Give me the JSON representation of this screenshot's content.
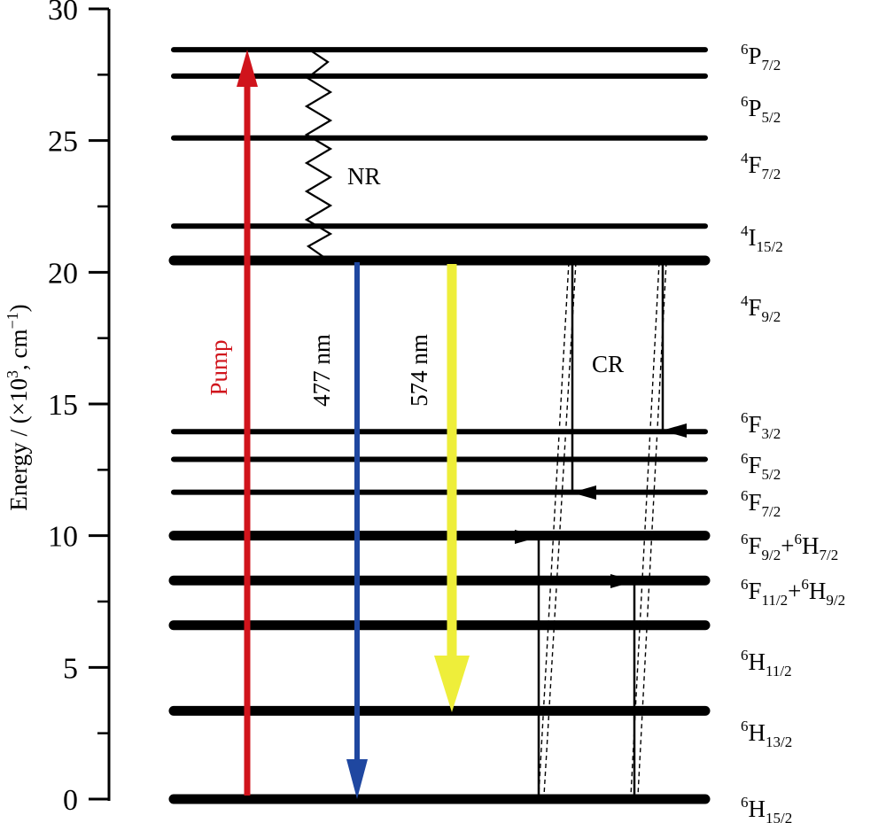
{
  "axis": {
    "title_main": "Energy / (×10",
    "title_exp": "3",
    "title_mid": ", cm",
    "title_exp2": "−1",
    "title_end": ")",
    "range": [
      0,
      30
    ],
    "ticks": [
      "0",
      "5",
      "10",
      "15",
      "20",
      "25",
      "30"
    ]
  },
  "levels": [
    {
      "id": "6H15/2",
      "energy": 0.0,
      "major": true,
      "base": "H",
      "sup": "6",
      "sub": "15/2"
    },
    {
      "id": "6H13/2",
      "energy": 3.35,
      "major": true,
      "base": "H",
      "sup": "6",
      "sub": "13/2"
    },
    {
      "id": "6H11/2",
      "energy": 6.6,
      "major": true,
      "base": "H",
      "sup": "6",
      "sub": "11/2"
    },
    {
      "id": "6F11/2+6H9/2",
      "energy": 8.3,
      "major": true,
      "base": "F",
      "sup": "6",
      "sub": "11/2",
      "plus": "+",
      "base2": "H",
      "sup2": "6",
      "sub2": "9/2"
    },
    {
      "id": "6F9/2+6H7/2",
      "energy": 10.0,
      "major": true,
      "base": "F",
      "sup": "6",
      "sub": "9/2",
      "plus": "+",
      "base2": "H",
      "sup2": "6",
      "sub2": "7/2"
    },
    {
      "id": "6F7/2",
      "energy": 11.65,
      "major": false,
      "base": "F",
      "sup": "6",
      "sub": "7/2"
    },
    {
      "id": "6F5/2",
      "energy": 12.9,
      "major": false,
      "base": "F",
      "sup": "6",
      "sub": "5/2"
    },
    {
      "id": "6F3/2",
      "energy": 13.95,
      "major": false,
      "base": "F",
      "sup": "6",
      "sub": "3/2"
    },
    {
      "id": "4F9/2",
      "energy": 20.45,
      "major": true,
      "base": "F",
      "sup": "4",
      "sub": "9/2"
    },
    {
      "id": "4I15/2",
      "energy": 21.75,
      "major": false,
      "base": "I",
      "sup": "4",
      "sub": "15/2"
    },
    {
      "id": "4F7/2",
      "energy": 25.1,
      "major": false,
      "base": "F",
      "sup": "4",
      "sub": "7/2"
    },
    {
      "id": "6P5/2",
      "energy": 27.45,
      "major": false,
      "base": "P",
      "sup": "6",
      "sub": "5/2"
    },
    {
      "id": "6P7/2",
      "energy": 28.45,
      "major": false,
      "base": "P",
      "sup": "6",
      "sub": "7/2"
    }
  ],
  "transitions": {
    "pump": {
      "label": "Pump",
      "from": 0.0,
      "to": 28.45,
      "color": "#d0141c"
    },
    "blue": {
      "label": "477 nm",
      "from": 20.45,
      "to": 0.0,
      "color": "#1f47a0"
    },
    "yellow": {
      "label": "574 nm",
      "from": 20.45,
      "to": 3.35,
      "color": "#eeee3a"
    },
    "nr": {
      "label": "NR",
      "from": 28.45,
      "to": 20.45
    },
    "cr": {
      "label": "CR"
    }
  }
}
